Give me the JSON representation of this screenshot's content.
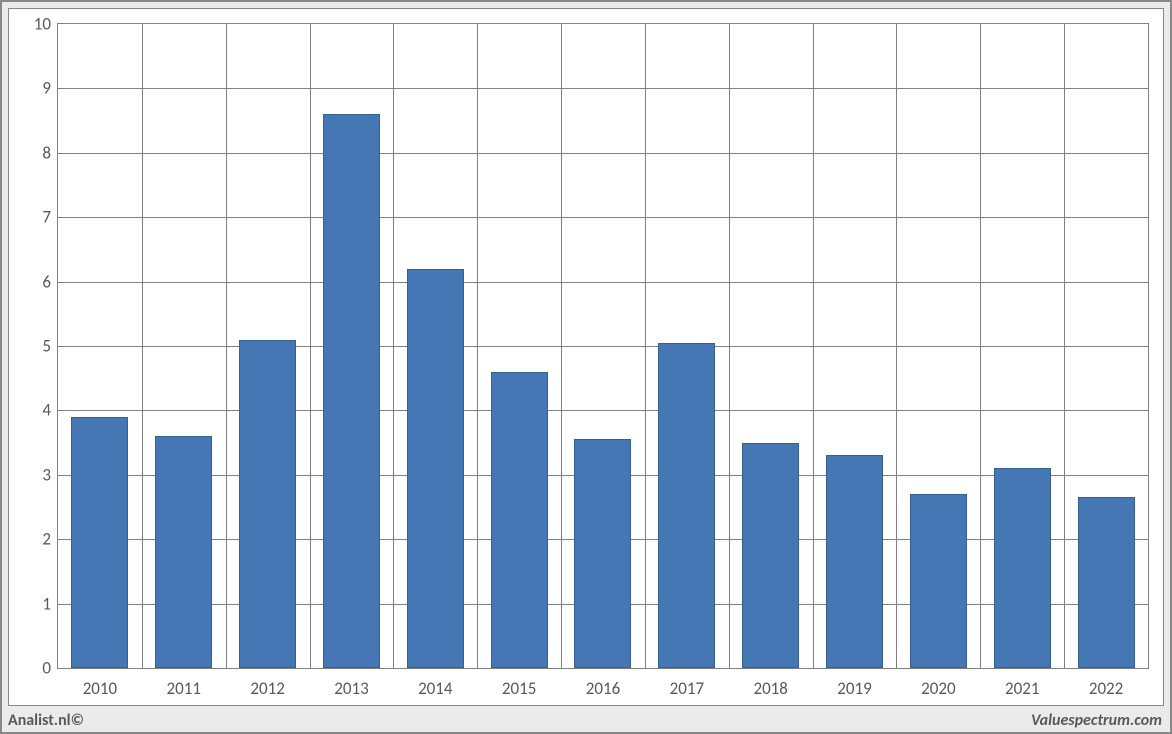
{
  "chart": {
    "type": "bar",
    "categories": [
      "2010",
      "2011",
      "2012",
      "2013",
      "2014",
      "2015",
      "2016",
      "2017",
      "2018",
      "2019",
      "2020",
      "2021",
      "2022"
    ],
    "values": [
      3.9,
      3.6,
      5.1,
      8.6,
      6.2,
      4.6,
      3.55,
      5.05,
      3.5,
      3.3,
      2.7,
      3.1,
      2.65
    ],
    "bar_color": "#4577b4",
    "bar_border_color": "#35608f",
    "ylim": [
      0,
      10
    ],
    "ytick_step": 1,
    "grid_color": "#808080",
    "background_color": "#ffffff",
    "panel_background": "#ebebeb",
    "tick_fontsize": 17,
    "tick_color": "#595959",
    "bar_width_ratio": 0.68
  },
  "footer": {
    "left": "Analist.nl©",
    "right": "Valuespectrum.com",
    "fontsize": 16,
    "color": "#595959"
  }
}
